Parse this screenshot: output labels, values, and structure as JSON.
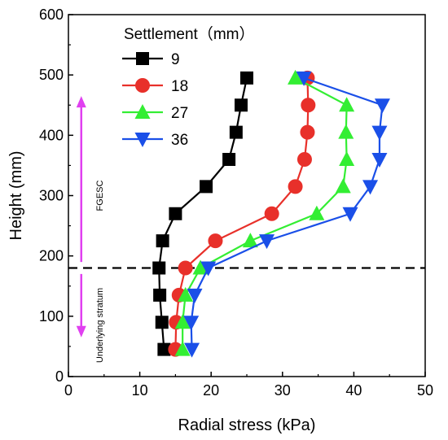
{
  "chart_data": {
    "type": "line",
    "title": "",
    "xlabel": "Radial stress  (kPa)",
    "ylabel": "Height  (mm)",
    "xlim": [
      0,
      50
    ],
    "ylim": [
      0,
      600
    ],
    "xticks": [
      0,
      10,
      20,
      30,
      40,
      50
    ],
    "yticks": [
      0,
      100,
      200,
      300,
      400,
      500,
      600
    ],
    "grid": false,
    "legend": {
      "title": "Settlement（mm）",
      "placement": "top-left"
    },
    "series": [
      {
        "name": "9",
        "color": "#000000",
        "marker": "square",
        "points": [
          [
            13.4,
            45
          ],
          [
            13.1,
            90
          ],
          [
            12.8,
            135
          ],
          [
            12.7,
            180
          ],
          [
            13.2,
            225
          ],
          [
            15.0,
            270
          ],
          [
            19.3,
            315
          ],
          [
            22.5,
            360
          ],
          [
            23.5,
            405
          ],
          [
            24.2,
            450
          ],
          [
            25.0,
            495
          ]
        ]
      },
      {
        "name": "18",
        "color": "#e8302a",
        "marker": "circle",
        "points": [
          [
            15.0,
            45
          ],
          [
            15.1,
            90
          ],
          [
            15.5,
            135
          ],
          [
            16.4,
            180
          ],
          [
            20.6,
            225
          ],
          [
            28.5,
            270
          ],
          [
            31.8,
            315
          ],
          [
            33.1,
            360
          ],
          [
            33.5,
            405
          ],
          [
            33.6,
            450
          ],
          [
            33.5,
            495
          ]
        ]
      },
      {
        "name": "27",
        "color": "#33ee33",
        "marker": "triangle-up",
        "points": [
          [
            16.0,
            45
          ],
          [
            16.0,
            90
          ],
          [
            16.4,
            135
          ],
          [
            18.5,
            180
          ],
          [
            25.5,
            225
          ],
          [
            34.8,
            270
          ],
          [
            38.5,
            315
          ],
          [
            39.0,
            360
          ],
          [
            38.9,
            405
          ],
          [
            39.0,
            450
          ],
          [
            31.8,
            495
          ]
        ]
      },
      {
        "name": "36",
        "color": "#1a4fe8",
        "marker": "triangle-down",
        "points": [
          [
            17.3,
            45
          ],
          [
            17.2,
            90
          ],
          [
            17.7,
            135
          ],
          [
            19.6,
            180
          ],
          [
            27.8,
            225
          ],
          [
            39.5,
            270
          ],
          [
            42.3,
            315
          ],
          [
            43.6,
            360
          ],
          [
            43.6,
            405
          ],
          [
            44.0,
            450
          ],
          [
            33.0,
            495
          ]
        ]
      }
    ],
    "reference_line": {
      "y": 180,
      "style": "dashed",
      "color": "#000000"
    },
    "annotations": {
      "arrow_color": "#e040f0",
      "arrow_x": 1.8,
      "upper": {
        "text": "FGESC",
        "y_from": 190,
        "y_to": 465
      },
      "lower": {
        "text": "Underlying stratum",
        "y_from": 170,
        "y_to": 65
      }
    }
  }
}
